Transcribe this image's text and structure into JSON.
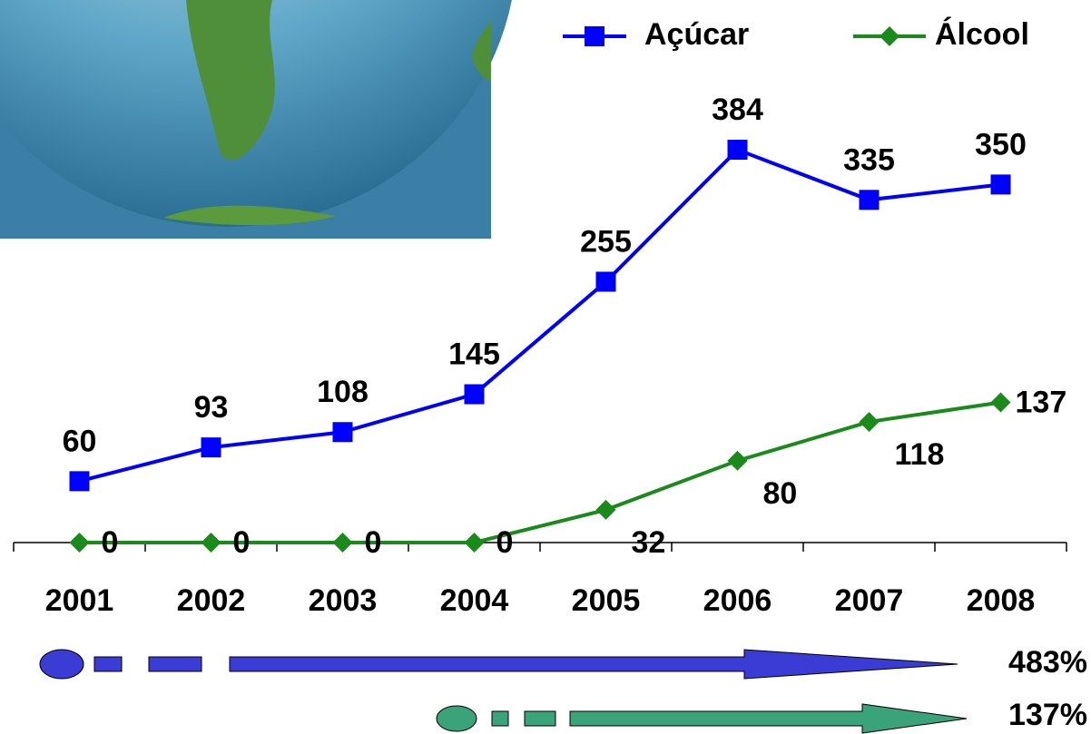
{
  "chart_data": {
    "type": "line",
    "categories": [
      "2001",
      "2002",
      "2003",
      "2004",
      "2005",
      "2006",
      "2007",
      "2008"
    ],
    "series": [
      {
        "name": "Açúcar",
        "color": "#0000ff",
        "marker": "square",
        "values": [
          60,
          93,
          108,
          145,
          255,
          384,
          335,
          350
        ]
      },
      {
        "name": "Álcool",
        "color": "#1a8a1a",
        "marker": "diamond",
        "values": [
          0,
          0,
          0,
          0,
          32,
          80,
          118,
          137
        ]
      }
    ],
    "ylim": [
      0,
      400
    ],
    "legend": "top-right",
    "annotations": [
      "483%",
      "137%"
    ]
  }
}
